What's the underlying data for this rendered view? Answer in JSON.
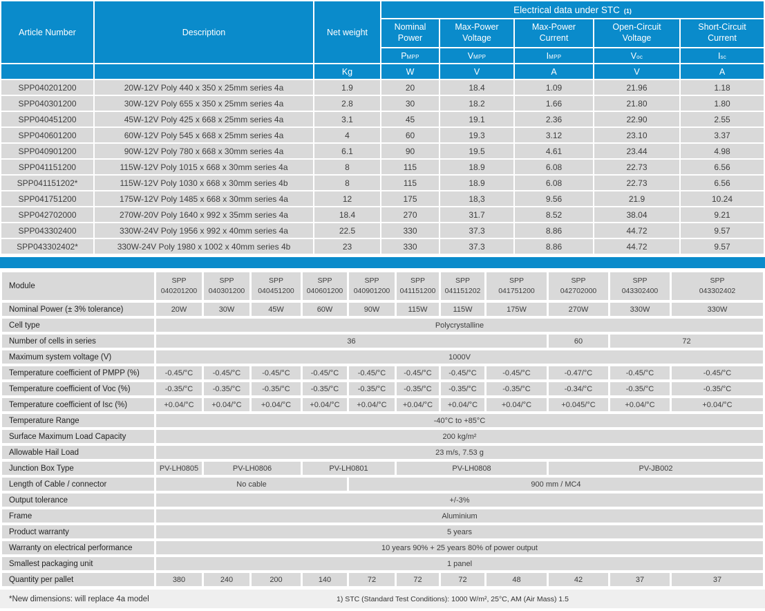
{
  "colors": {
    "brand_blue": "#0a8bcb",
    "row_gray": "#d9d9d9",
    "footer_gray": "#efefef",
    "header_text": "#ffffff",
    "body_text": "#3d3d3d"
  },
  "top_table": {
    "headers": {
      "article_number": "Article Number",
      "description": "Description",
      "net_weight": "Net weight",
      "net_weight_unit": "Kg",
      "stc_label": "Electrical data under STC",
      "stc_sup": "(1)",
      "electrical_columns": [
        {
          "label": "Nominal\nPower",
          "symbol_main": "P",
          "symbol_sub": "MPP",
          "unit": "W"
        },
        {
          "label": "Max-Power\nVoltage",
          "symbol_main": "V",
          "symbol_sub": "MPP",
          "unit": "V"
        },
        {
          "label": "Max-Power\nCurrent",
          "symbol_main": "I",
          "symbol_sub": "MPP",
          "unit": "A"
        },
        {
          "label": "Open-Circuit\nVoltage",
          "symbol_main": "V",
          "symbol_sub": "oc",
          "unit": "V"
        },
        {
          "label": "Short-Circuit\nCurrent",
          "symbol_main": "I",
          "symbol_sub": "sc",
          "unit": "A"
        }
      ]
    },
    "rows": [
      {
        "article": "SPP040201200",
        "description": "20W-12V Poly 440 x 350 x 25mm series 4a",
        "net_weight": "1.9",
        "pmpp": "20",
        "vmpp": "18.4",
        "impp": "1.09",
        "voc": "21.96",
        "isc": "1.18"
      },
      {
        "article": "SPP040301200",
        "description": "30W-12V Poly 655 x 350 x 25mm series 4a",
        "net_weight": "2.8",
        "pmpp": "30",
        "vmpp": "18.2",
        "impp": "1.66",
        "voc": "21.80",
        "isc": "1.80"
      },
      {
        "article": "SPP040451200",
        "description": "45W-12V Poly 425 x 668 x 25mm series 4a",
        "net_weight": "3.1",
        "pmpp": "45",
        "vmpp": "19.1",
        "impp": "2.36",
        "voc": "22.90",
        "isc": "2.55"
      },
      {
        "article": "SPP040601200",
        "description": "60W-12V Poly 545 x 668 x 25mm series 4a",
        "net_weight": "4",
        "pmpp": "60",
        "vmpp": "19.3",
        "impp": "3.12",
        "voc": "23.10",
        "isc": "3.37"
      },
      {
        "article": "SPP040901200",
        "description": "90W-12V Poly 780 x 668 x 30mm series 4a",
        "net_weight": "6.1",
        "pmpp": "90",
        "vmpp": "19.5",
        "impp": "4.61",
        "voc": "23.44",
        "isc": "4.98"
      },
      {
        "article": "SPP041151200",
        "description": "115W-12V Poly 1015 x 668 x 30mm series 4a",
        "net_weight": "8",
        "pmpp": "115",
        "vmpp": "18.9",
        "impp": "6.08",
        "voc": "22.73",
        "isc": "6.56"
      },
      {
        "article": "SPP041151202*",
        "description": "115W-12V Poly 1030 x 668 x 30mm series 4b",
        "net_weight": "8",
        "pmpp": "115",
        "vmpp": "18.9",
        "impp": "6.08",
        "voc": "22.73",
        "isc": "6.56"
      },
      {
        "article": "SPP041751200",
        "description": "175W-12V Poly 1485 x 668 x 30mm series 4a",
        "net_weight": "12",
        "pmpp": "175",
        "vmpp": "18,3",
        "impp": "9.56",
        "voc": "21.9",
        "isc": "10.24"
      },
      {
        "article": "SPP042702000",
        "description": "270W-20V Poly 1640 x 992 x 35mm series 4a",
        "net_weight": "18.4",
        "pmpp": "270",
        "vmpp": "31.7",
        "impp": "8.52",
        "voc": "38.04",
        "isc": "9.21"
      },
      {
        "article": "SPP043302400",
        "description": "330W-24V Poly 1956 x 992 x 40mm series 4a",
        "net_weight": "22.5",
        "pmpp": "330",
        "vmpp": "37.3",
        "impp": "8.86",
        "voc": "44.72",
        "isc": "9.57"
      },
      {
        "article": "SPP043302402*",
        "description": "330W-24V Poly 1980 x 1002 x 40mm series 4b",
        "net_weight": "23",
        "pmpp": "330",
        "vmpp": "37.3",
        "impp": "8.86",
        "voc": "44.72",
        "isc": "9.57"
      }
    ]
  },
  "spec_table": {
    "module_label": "Module",
    "modules": [
      "SPP\n040201200",
      "SPP\n040301200",
      "SPP\n040451200",
      "SPP\n040601200",
      "SPP\n040901200",
      "SPP\n041151200",
      "SPP\n041151202",
      "SPP\n041751200",
      "SPP\n042702000",
      "SPP\n043302400",
      "SPP\n043302402"
    ],
    "rows": [
      {
        "label": "Nominal Power  (± 3% tolerance)",
        "cells": [
          {
            "text": "20W",
            "span": 1
          },
          {
            "text": "30W",
            "span": 1
          },
          {
            "text": "45W",
            "span": 1
          },
          {
            "text": "60W",
            "span": 1
          },
          {
            "text": "90W",
            "span": 1
          },
          {
            "text": "115W",
            "span": 1
          },
          {
            "text": "115W",
            "span": 1
          },
          {
            "text": "175W",
            "span": 1
          },
          {
            "text": "270W",
            "span": 1
          },
          {
            "text": "330W",
            "span": 1
          },
          {
            "text": "330W",
            "span": 1
          }
        ]
      },
      {
        "label": "Cell type",
        "cells": [
          {
            "text": "Polycrystalline",
            "span": 11
          }
        ]
      },
      {
        "label": "Number of cells in series",
        "cells": [
          {
            "text": "36",
            "span": 8
          },
          {
            "text": "60",
            "span": 1
          },
          {
            "text": "72",
            "span": 2
          }
        ]
      },
      {
        "label": "Maximum system voltage (V)",
        "cells": [
          {
            "text": "1000V",
            "span": 11
          }
        ]
      },
      {
        "label": "Temperature coefficient of PMPP (%)",
        "cells": [
          {
            "text": "-0.45/°C",
            "span": 1
          },
          {
            "text": "-0.45/°C",
            "span": 1
          },
          {
            "text": "-0.45/°C",
            "span": 1
          },
          {
            "text": "-0.45/°C",
            "span": 1
          },
          {
            "text": "-0.45/°C",
            "span": 1
          },
          {
            "text": "-0.45/°C",
            "span": 1
          },
          {
            "text": "-0.45/°C",
            "span": 1
          },
          {
            "text": "-0.45/°C",
            "span": 1
          },
          {
            "text": "-0.47/°C",
            "span": 1
          },
          {
            "text": "-0.45/°C",
            "span": 1
          },
          {
            "text": "-0.45/°C",
            "span": 1
          }
        ]
      },
      {
        "label": "Temperature coefficient of Voc (%)",
        "cells": [
          {
            "text": "-0.35/°C",
            "span": 1
          },
          {
            "text": "-0.35/°C",
            "span": 1
          },
          {
            "text": "-0.35/°C",
            "span": 1
          },
          {
            "text": "-0.35/°C",
            "span": 1
          },
          {
            "text": "-0.35/°C",
            "span": 1
          },
          {
            "text": "-0.35/°C",
            "span": 1
          },
          {
            "text": "-0.35/°C",
            "span": 1
          },
          {
            "text": "-0.35/°C",
            "span": 1
          },
          {
            "text": "-0.34/°C",
            "span": 1
          },
          {
            "text": "-0.35/°C",
            "span": 1
          },
          {
            "text": "-0.35/°C",
            "span": 1
          }
        ]
      },
      {
        "label": "Temperature coefficient of Isc (%)",
        "cells": [
          {
            "text": "+0.04/°C",
            "span": 1
          },
          {
            "text": "+0.04/°C",
            "span": 1
          },
          {
            "text": "+0.04/°C",
            "span": 1
          },
          {
            "text": "+0.04/°C",
            "span": 1
          },
          {
            "text": "+0.04/°C",
            "span": 1
          },
          {
            "text": "+0.04/°C",
            "span": 1
          },
          {
            "text": "+0.04/°C",
            "span": 1
          },
          {
            "text": "+0.04/°C",
            "span": 1
          },
          {
            "text": "+0.045/°C",
            "span": 1
          },
          {
            "text": "+0.04/°C",
            "span": 1
          },
          {
            "text": "+0.04/°C",
            "span": 1
          }
        ]
      },
      {
        "label": "Temperature Range",
        "cells": [
          {
            "text": "-40°C to +85°C",
            "span": 11
          }
        ]
      },
      {
        "label": "Surface Maximum Load Capacity",
        "cells": [
          {
            "text": "200 kg/m²",
            "span": 11
          }
        ]
      },
      {
        "label": "Allowable Hail Load",
        "cells": [
          {
            "text": "23 m/s, 7.53 g",
            "span": 11
          }
        ]
      },
      {
        "label": "Junction Box Type",
        "cells": [
          {
            "text": "PV-LH0805",
            "span": 1
          },
          {
            "text": "PV-LH0806",
            "span": 2
          },
          {
            "text": "PV-LH0801",
            "span": 2
          },
          {
            "text": "PV-LH0808",
            "span": 3
          },
          {
            "text": "PV-JB002",
            "span": 3
          }
        ]
      },
      {
        "label": "Length of Cable / connector",
        "cells": [
          {
            "text": "No cable",
            "span": 4
          },
          {
            "text": "900 mm / MC4",
            "span": 7
          }
        ]
      },
      {
        "label": "Output tolerance",
        "cells": [
          {
            "text": "+/-3%",
            "span": 11
          }
        ]
      },
      {
        "label": "Frame",
        "cells": [
          {
            "text": "Aluminium",
            "span": 11
          }
        ]
      },
      {
        "label": "Product warranty",
        "cells": [
          {
            "text": "5 years",
            "span": 11
          }
        ]
      },
      {
        "label": "Warranty on electrical performance",
        "cells": [
          {
            "text": "10 years 90% + 25 years 80% of power output",
            "span": 11
          }
        ]
      },
      {
        "label": "Smallest packaging unit",
        "cells": [
          {
            "text": "1 panel",
            "span": 11
          }
        ]
      },
      {
        "label": "Quantity per pallet",
        "cells": [
          {
            "text": "380",
            "span": 1
          },
          {
            "text": "240",
            "span": 1
          },
          {
            "text": "200",
            "span": 1
          },
          {
            "text": "140",
            "span": 1
          },
          {
            "text": "72",
            "span": 1
          },
          {
            "text": "72",
            "span": 1
          },
          {
            "text": "72",
            "span": 1
          },
          {
            "text": "48",
            "span": 1
          },
          {
            "text": "42",
            "span": 1
          },
          {
            "text": "37",
            "span": 1
          },
          {
            "text": "37",
            "span": 1
          }
        ]
      }
    ]
  },
  "footer": {
    "left_note": "*New dimensions: will replace 4a model",
    "stc_note": "1) STC (Standard Test Conditions): 1000 W/m², 25°C, AM (Air Mass) 1.5"
  }
}
